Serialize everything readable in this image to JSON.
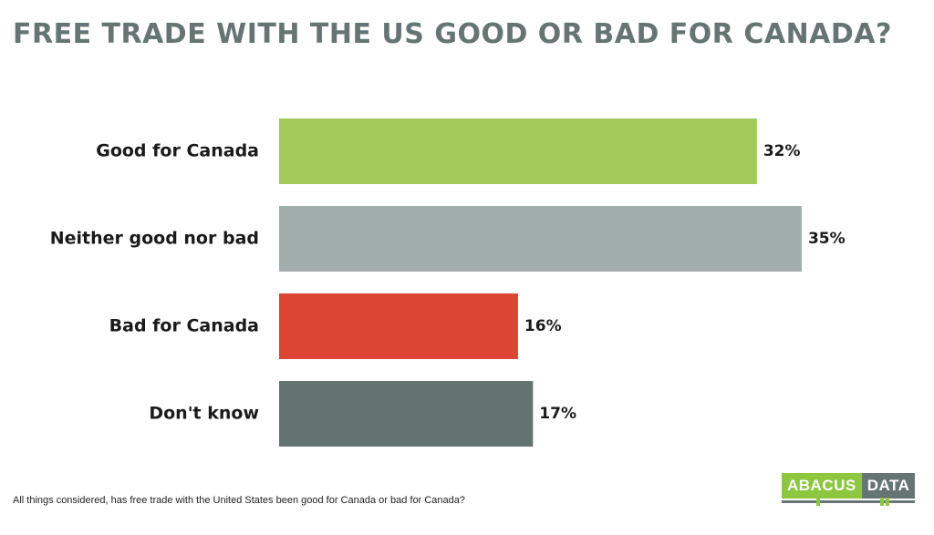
{
  "title": "FREE TRADE WITH THE US GOOD OR BAD FOR CANADA?",
  "footnote": "All things considered, has free trade with the United States been good for Canada or bad for Canada?",
  "logo": {
    "part1": "ABACUS",
    "part2": "DATA"
  },
  "chart_data": {
    "type": "bar",
    "orientation": "horizontal",
    "categories": [
      "Good for Canada",
      "Neither good nor bad",
      "Bad for Canada",
      "Don't know"
    ],
    "values": [
      32,
      35,
      16,
      17
    ],
    "value_labels": [
      "32%",
      "35%",
      "16%",
      "17%"
    ],
    "colors": [
      "#a3c95a",
      "#a1adab",
      "#dc4433",
      "#647270"
    ],
    "xlim": [
      0,
      35
    ],
    "grid": false,
    "legend": "none"
  }
}
